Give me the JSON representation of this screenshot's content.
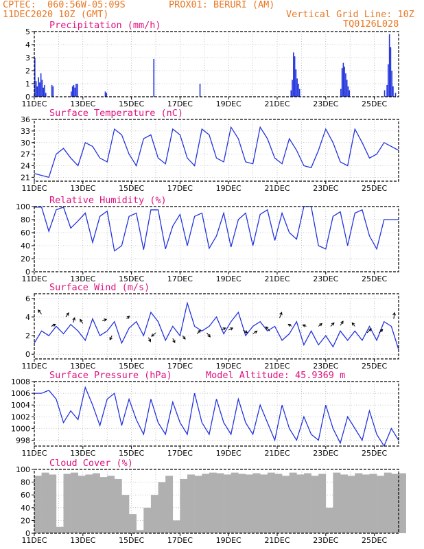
{
  "header": {
    "line1_left": "CPTEC:  060:56W-05:09S",
    "line1_right": "PROX01: BERURI (AM)",
    "line2_left": "11DEC2020 10Z (GMT)",
    "line2_right": "Vertical Grid Line: 10Z",
    "line3_right": "TQ0126L028"
  },
  "date_labels": [
    "11DEC",
    "13DEC",
    "15DEC",
    "17DEC",
    "19DEC",
    "21DEC",
    "23DEC",
    "25DEC"
  ],
  "colors": {
    "series": "#2233dd",
    "title": "#e0117f",
    "header": "#e87722",
    "cloud": "#b0b0b0"
  },
  "chart_data": [
    {
      "type": "bar",
      "title": "Precipitation (mm/h)",
      "x_unit": "days since 11DEC 10Z",
      "ylim": [
        0,
        5
      ],
      "yticks": [
        0,
        1,
        2,
        3,
        4,
        5
      ],
      "bars": [
        [
          0.0,
          3.0
        ],
        [
          0.05,
          1.2
        ],
        [
          0.1,
          0.8
        ],
        [
          0.15,
          1.5
        ],
        [
          0.2,
          1.1
        ],
        [
          0.25,
          1.8
        ],
        [
          0.3,
          1.3
        ],
        [
          0.35,
          0.7
        ],
        [
          0.4,
          0.9
        ],
        [
          0.45,
          0.3
        ],
        [
          0.7,
          0.9
        ],
        [
          0.75,
          0.8
        ],
        [
          1.5,
          0.4
        ],
        [
          1.55,
          0.8
        ],
        [
          1.6,
          0.9
        ],
        [
          1.65,
          0.7
        ],
        [
          1.7,
          1.0
        ],
        [
          1.75,
          1.0
        ],
        [
          2.9,
          0.4
        ],
        [
          2.95,
          0.3
        ],
        [
          4.9,
          2.9
        ],
        [
          6.8,
          1.0
        ],
        [
          10.55,
          0.5
        ],
        [
          10.6,
          1.3
        ],
        [
          10.65,
          3.4
        ],
        [
          10.7,
          3.1
        ],
        [
          10.75,
          2.1
        ],
        [
          10.8,
          1.4
        ],
        [
          10.85,
          1.0
        ],
        [
          10.9,
          0.6
        ],
        [
          12.6,
          0.6
        ],
        [
          12.65,
          2.2
        ],
        [
          12.7,
          2.6
        ],
        [
          12.75,
          2.3
        ],
        [
          12.8,
          1.8
        ],
        [
          12.85,
          1.3
        ],
        [
          12.9,
          0.8
        ],
        [
          12.95,
          0.5
        ],
        [
          14.4,
          0.5
        ],
        [
          14.5,
          0.9
        ],
        [
          14.55,
          2.5
        ],
        [
          14.6,
          4.8
        ],
        [
          14.65,
          3.8
        ],
        [
          14.7,
          2.0
        ],
        [
          14.75,
          0.8
        ],
        [
          14.85,
          0.3
        ]
      ]
    },
    {
      "type": "line",
      "title": "Surface Temperature (nC)",
      "ylim": [
        20,
        36
      ],
      "yticks": [
        21,
        24,
        27,
        30,
        33,
        36
      ],
      "x": [
        0,
        0.3,
        0.6,
        0.9,
        1.2,
        1.5,
        1.8,
        2.1,
        2.4,
        2.7,
        3.0,
        3.3,
        3.6,
        3.9,
        4.2,
        4.5,
        4.8,
        5.1,
        5.4,
        5.7,
        6.0,
        6.3,
        6.6,
        6.9,
        7.2,
        7.5,
        7.8,
        8.1,
        8.4,
        8.7,
        9.0,
        9.3,
        9.6,
        9.9,
        10.2,
        10.5,
        10.8,
        11.1,
        11.4,
        11.7,
        12.0,
        12.3,
        12.6,
        12.9,
        13.2,
        13.5,
        13.8,
        14.1,
        14.4,
        14.7,
        15.0
      ],
      "y": [
        22,
        21.5,
        21,
        27,
        28.5,
        26,
        24,
        30,
        29,
        26,
        25,
        33.5,
        32,
        27,
        24,
        31,
        32,
        26,
        24.5,
        33.5,
        32,
        26,
        24,
        33.5,
        32,
        26,
        25,
        34,
        31,
        25,
        24.5,
        34,
        31,
        26,
        24.5,
        31,
        28,
        24,
        23.5,
        28,
        33.5,
        30,
        25,
        24,
        33.5,
        30,
        26,
        27,
        30,
        29,
        28
      ]
    },
    {
      "type": "line",
      "title": "Relative Humidity (%)",
      "ylim": [
        0,
        100
      ],
      "yticks": [
        0,
        20,
        40,
        60,
        80,
        100
      ],
      "x": [
        0,
        0.3,
        0.6,
        0.9,
        1.2,
        1.5,
        1.8,
        2.1,
        2.4,
        2.7,
        3.0,
        3.3,
        3.6,
        3.9,
        4.2,
        4.5,
        4.8,
        5.1,
        5.4,
        5.7,
        6.0,
        6.3,
        6.6,
        6.9,
        7.2,
        7.5,
        7.8,
        8.1,
        8.4,
        8.7,
        9.0,
        9.3,
        9.6,
        9.9,
        10.2,
        10.5,
        10.8,
        11.1,
        11.4,
        11.7,
        12.0,
        12.3,
        12.6,
        12.9,
        13.2,
        13.5,
        13.8,
        14.1,
        14.4,
        14.7,
        15.0
      ],
      "y": [
        99,
        99,
        62,
        95,
        99,
        67,
        78,
        90,
        45,
        85,
        93,
        32,
        40,
        85,
        90,
        34,
        95,
        95,
        35,
        70,
        88,
        40,
        85,
        90,
        36,
        55,
        90,
        38,
        80,
        90,
        40,
        88,
        95,
        48,
        90,
        60,
        50,
        100,
        100,
        40,
        35,
        85,
        92,
        40,
        90,
        95,
        55,
        35,
        80,
        80,
        80
      ]
    },
    {
      "type": "line",
      "title": "Surface Wind (m/s)",
      "ylim": [
        -0.5,
        6.5
      ],
      "yticks": [
        0,
        2,
        4,
        6
      ],
      "x": [
        0,
        0.3,
        0.6,
        0.9,
        1.2,
        1.5,
        1.8,
        2.1,
        2.4,
        2.7,
        3.0,
        3.3,
        3.6,
        3.9,
        4.2,
        4.5,
        4.8,
        5.1,
        5.4,
        5.7,
        6.0,
        6.3,
        6.6,
        6.9,
        7.2,
        7.5,
        7.8,
        8.1,
        8.4,
        8.7,
        9.0,
        9.3,
        9.6,
        9.9,
        10.2,
        10.5,
        10.8,
        11.1,
        11.4,
        11.7,
        12.0,
        12.3,
        12.6,
        12.9,
        13.2,
        13.5,
        13.8,
        14.1,
        14.4,
        14.7,
        15.0
      ],
      "y": [
        1.2,
        2.5,
        2.0,
        3.0,
        2.2,
        3.2,
        2.5,
        1.5,
        3.8,
        2.0,
        2.5,
        3.5,
        1.2,
        2.8,
        3.5,
        2.0,
        4.5,
        3.5,
        1.5,
        3.0,
        2.0,
        5.5,
        3.0,
        2.5,
        3.0,
        4.0,
        2.2,
        3.5,
        4.5,
        2.0,
        3.0,
        3.5,
        2.5,
        3.0,
        1.5,
        2.2,
        3.5,
        1.0,
        2.5,
        1.0,
        2.0,
        0.8,
        2.5,
        1.5,
        2.5,
        1.5,
        3.0,
        1.5,
        3.5,
        3.0,
        0.5
      ],
      "arrows": [
        [
          0.3,
          4.3,
          -0.5,
          0.6
        ],
        [
          0.7,
          3.0,
          0.6,
          0.3
        ],
        [
          1.3,
          4.0,
          0.4,
          0.6
        ],
        [
          1.6,
          3.4,
          0.2,
          0.7
        ],
        [
          2.0,
          3.3,
          -0.4,
          0.6
        ],
        [
          2.8,
          3.6,
          0.6,
          0.2
        ],
        [
          3.2,
          2.0,
          -0.3,
          -0.6
        ],
        [
          3.8,
          3.8,
          0.4,
          0.4
        ],
        [
          4.7,
          1.8,
          0.3,
          -0.6
        ],
        [
          5.0,
          2.3,
          -0.6,
          -0.5
        ],
        [
          5.7,
          1.7,
          0.3,
          -0.6
        ],
        [
          6.1,
          2.0,
          0.4,
          -0.5
        ],
        [
          6.7,
          2.2,
          0.5,
          0.5
        ],
        [
          7.1,
          2.3,
          0.5,
          -0.6
        ],
        [
          7.7,
          2.6,
          0.6,
          0.3
        ],
        [
          8.0,
          2.6,
          0.6,
          0.3
        ],
        [
          8.6,
          2.6,
          0.6,
          -0.4
        ],
        [
          9.0,
          2.2,
          0.6,
          0.4
        ],
        [
          9.7,
          2.5,
          -0.6,
          0.6
        ],
        [
          10.1,
          3.9,
          0.3,
          0.8
        ],
        [
          10.6,
          3.0,
          -0.5,
          0.3
        ],
        [
          11.2,
          3.0,
          -0.5,
          0.2
        ],
        [
          11.7,
          3.0,
          0.5,
          0.4
        ],
        [
          12.2,
          3.0,
          0.5,
          0.5
        ],
        [
          12.6,
          3.1,
          0.4,
          0.6
        ],
        [
          13.2,
          3.0,
          -0.4,
          0.5
        ],
        [
          13.7,
          2.3,
          0.6,
          0.6
        ],
        [
          14.2,
          2.3,
          0.5,
          0.5
        ],
        [
          14.8,
          3.8,
          0.1,
          0.9
        ]
      ]
    },
    {
      "type": "line",
      "title": "Surface Pressure (hPa)",
      "subtitle": "Model Altitude: 45.9369 m",
      "ylim": [
        997,
        1008
      ],
      "yticks": [
        998,
        1000,
        1002,
        1004,
        1006,
        1008
      ],
      "x": [
        0,
        0.3,
        0.6,
        0.9,
        1.2,
        1.5,
        1.8,
        2.1,
        2.4,
        2.7,
        3.0,
        3.3,
        3.6,
        3.9,
        4.2,
        4.5,
        4.8,
        5.1,
        5.4,
        5.7,
        6.0,
        6.3,
        6.6,
        6.9,
        7.2,
        7.5,
        7.8,
        8.1,
        8.4,
        8.7,
        9.0,
        9.3,
        9.6,
        9.9,
        10.2,
        10.5,
        10.8,
        11.1,
        11.4,
        11.7,
        12.0,
        12.3,
        12.6,
        12.9,
        13.2,
        13.5,
        13.8,
        14.1,
        14.4,
        14.7,
        15.0
      ],
      "y": [
        1006,
        1006,
        1006.5,
        1005,
        1001,
        1003,
        1001.5,
        1007,
        1004,
        1000.5,
        1005,
        1006,
        1000.5,
        1005,
        1001.5,
        999,
        1005,
        1001,
        999,
        1004.5,
        1001,
        999,
        1006,
        1001,
        999,
        1005,
        1001,
        999,
        1005,
        1001,
        999,
        1004,
        1001,
        998,
        1004,
        1000,
        998,
        1002,
        999,
        998,
        1004,
        1000,
        997.5,
        1002,
        1000,
        998,
        1003,
        999,
        997,
        1000,
        998
      ]
    },
    {
      "type": "bar",
      "title": "Cloud Cover (%)",
      "ylim": [
        0,
        100
      ],
      "yticks": [
        0,
        20,
        40,
        60,
        80,
        100
      ],
      "x": [
        0,
        0.3,
        0.6,
        0.9,
        1.2,
        1.5,
        1.8,
        2.1,
        2.4,
        2.7,
        3.0,
        3.3,
        3.6,
        3.9,
        4.2,
        4.5,
        4.8,
        5.1,
        5.4,
        5.7,
        6.0,
        6.3,
        6.6,
        6.9,
        7.2,
        7.5,
        7.8,
        8.1,
        8.4,
        8.7,
        9.0,
        9.3,
        9.6,
        9.9,
        10.2,
        10.5,
        10.8,
        11.1,
        11.4,
        11.7,
        12.0,
        12.3,
        12.6,
        12.9,
        13.2,
        13.5,
        13.8,
        14.1,
        14.4,
        14.7,
        15.0
      ],
      "y": [
        90,
        95,
        92,
        10,
        93,
        95,
        90,
        92,
        94,
        88,
        90,
        85,
        60,
        30,
        5,
        40,
        60,
        80,
        90,
        20,
        85,
        92,
        90,
        93,
        95,
        94,
        92,
        95,
        93,
        92,
        94,
        92,
        95,
        93,
        90,
        95,
        92,
        94,
        90,
        93,
        40,
        95,
        92,
        90,
        94,
        92,
        93,
        90,
        95,
        93,
        94
      ]
    }
  ]
}
